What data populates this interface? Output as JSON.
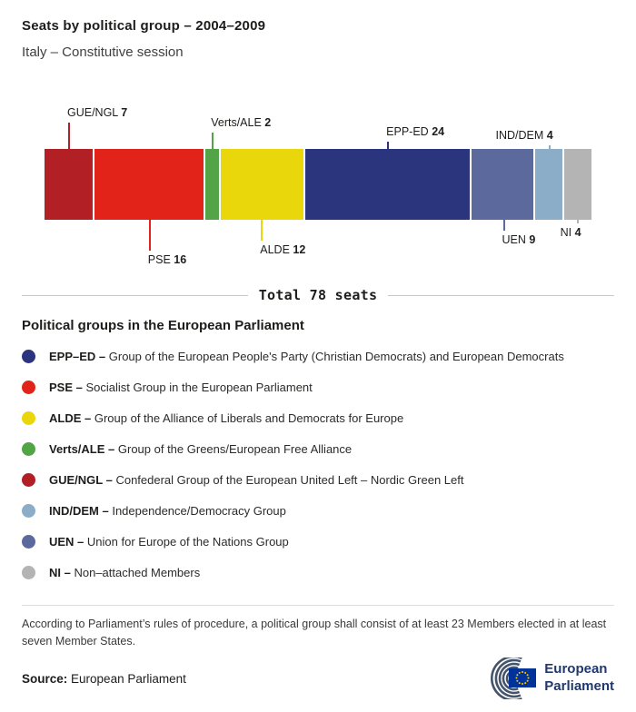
{
  "header": {
    "title": "Seats by political group – 2004–2009",
    "subtitle": "Italy – Constitutive session"
  },
  "chart_data": {
    "type": "bar",
    "variant": "horizontal-stacked",
    "title": "Seats by political group – 2004–2009",
    "total_seats": 78,
    "total_label": "Total 78 seats",
    "categories": [
      "GUE/NGL",
      "PSE",
      "Verts/ALE",
      "ALDE",
      "EPP-ED",
      "UEN",
      "IND/DEM",
      "NI"
    ],
    "values": [
      7,
      16,
      2,
      12,
      24,
      9,
      4,
      4
    ],
    "series": [
      {
        "name": "GUE/NGL",
        "value": 7,
        "color": "#b21f24",
        "callout": "above"
      },
      {
        "name": "PSE",
        "value": 16,
        "color": "#e2231a",
        "callout": "below"
      },
      {
        "name": "Verts/ALE",
        "value": 2,
        "color": "#52a447",
        "callout": "above"
      },
      {
        "name": "ALDE",
        "value": 12,
        "color": "#e9d70b",
        "callout": "below"
      },
      {
        "name": "EPP-ED",
        "value": 24,
        "color": "#2a357e",
        "callout": "above"
      },
      {
        "name": "UEN",
        "value": 9,
        "color": "#5b699c",
        "callout": "below"
      },
      {
        "name": "IND/DEM",
        "value": 4,
        "color": "#8badc7",
        "callout": "above"
      },
      {
        "name": "NI",
        "value": 4,
        "color": "#b4b4b4",
        "callout": "below"
      }
    ]
  },
  "legend": {
    "heading": "Political groups in the European Parliament",
    "items": [
      {
        "abbr": "EPP–ED –",
        "description": "Group of the European People's Party (Christian Democrats) and European Democrats",
        "color": "#2a357e"
      },
      {
        "abbr": "PSE –",
        "description": "Socialist Group in the European Parliament",
        "color": "#e2231a"
      },
      {
        "abbr": "ALDE –",
        "description": "Group of the Alliance of Liberals and Democrats for Europe",
        "color": "#e9d70b"
      },
      {
        "abbr": "Verts/ALE –",
        "description": "Group of the Greens/European Free Alliance",
        "color": "#52a447"
      },
      {
        "abbr": "GUE/NGL –",
        "description": "Confederal Group of the European United Left – Nordic Green Left",
        "color": "#b21f24"
      },
      {
        "abbr": "IND/DEM –",
        "description": "Independence/Democracy Group",
        "color": "#8badc7"
      },
      {
        "abbr": "UEN –",
        "description": "Union for Europe of the Nations Group",
        "color": "#5b699c"
      },
      {
        "abbr": "NI –",
        "description": "Non–attached Members",
        "color": "#b4b4b4"
      }
    ]
  },
  "footnote": "According to Parliament’s rules of procedure, a political group shall consist of at least 23 Members elected in at least seven Member States.",
  "source": {
    "label": "Source:",
    "text": "European Parliament"
  },
  "logo": {
    "line1": "European",
    "line2": "Parliament"
  }
}
